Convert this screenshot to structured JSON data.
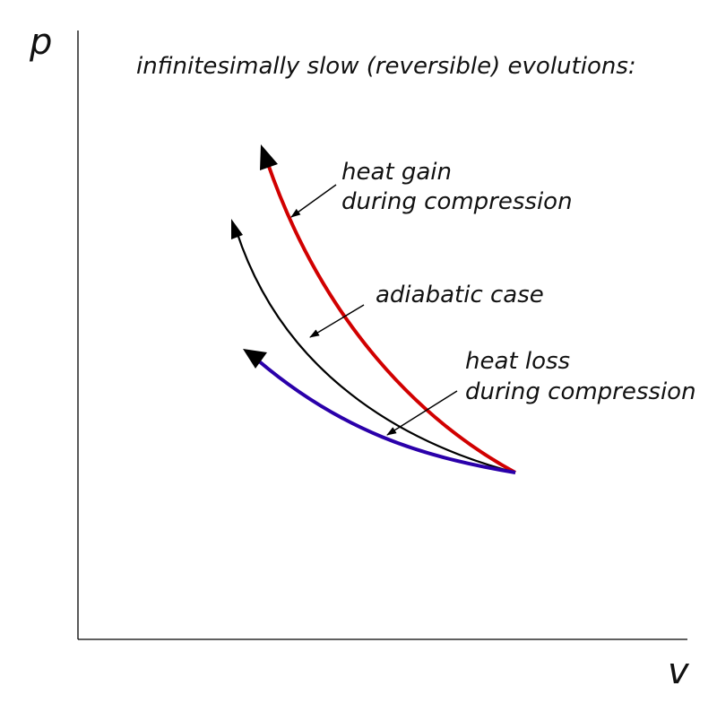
{
  "title": "infinitesimally slow (reversible) evolutions:",
  "axes": {
    "y_label": "p",
    "x_label": "v"
  },
  "curves": {
    "heat_gain": {
      "color": "#d10000",
      "label_line1": "heat gain",
      "label_line2": "during compression"
    },
    "adiabatic": {
      "color": "#000000",
      "label": "adiabatic case"
    },
    "heat_loss": {
      "color": "#2a00aa",
      "label_line1": "heat loss",
      "label_line2": "during compression"
    }
  },
  "colors": {
    "axis": "#000000",
    "text": "#111111",
    "pointer": "#000000"
  }
}
